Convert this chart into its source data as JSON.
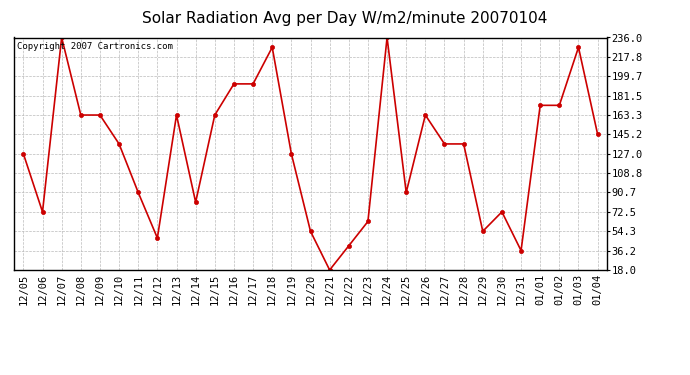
{
  "title": "Solar Radiation Avg per Day W/m2/minute 20070104",
  "copyright": "Copyright 2007 Cartronics.com",
  "labels": [
    "12/05",
    "12/06",
    "12/07",
    "12/08",
    "12/09",
    "12/10",
    "12/11",
    "12/12",
    "12/13",
    "12/14",
    "12/15",
    "12/16",
    "12/17",
    "12/18",
    "12/19",
    "12/20",
    "12/21",
    "12/22",
    "12/23",
    "12/24",
    "12/25",
    "12/26",
    "12/27",
    "12/28",
    "12/29",
    "12/30",
    "12/31",
    "01/01",
    "01/02",
    "01/03",
    "01/04"
  ],
  "values": [
    127.0,
    72.5,
    236.0,
    163.3,
    163.3,
    136.2,
    90.7,
    48.0,
    163.3,
    81.6,
    163.3,
    192.5,
    192.5,
    226.8,
    127.0,
    54.3,
    18.0,
    40.7,
    63.5,
    236.0,
    90.7,
    163.3,
    136.2,
    136.2,
    54.3,
    72.5,
    36.2,
    172.4,
    172.4,
    226.8,
    145.2
  ],
  "ylim_min": 18.0,
  "ylim_max": 236.0,
  "yticks": [
    18.0,
    36.2,
    54.3,
    72.5,
    90.7,
    108.8,
    127.0,
    145.2,
    163.3,
    181.5,
    199.7,
    217.8,
    236.0
  ],
  "line_color": "#cc0000",
  "marker": "o",
  "marker_size": 3,
  "background_color": "#ffffff",
  "plot_bg_color": "#ffffff",
  "grid_color": "#bbbbbb",
  "title_fontsize": 11,
  "copyright_fontsize": 6.5,
  "tick_fontsize": 7.5,
  "ytick_fontsize": 7.5
}
